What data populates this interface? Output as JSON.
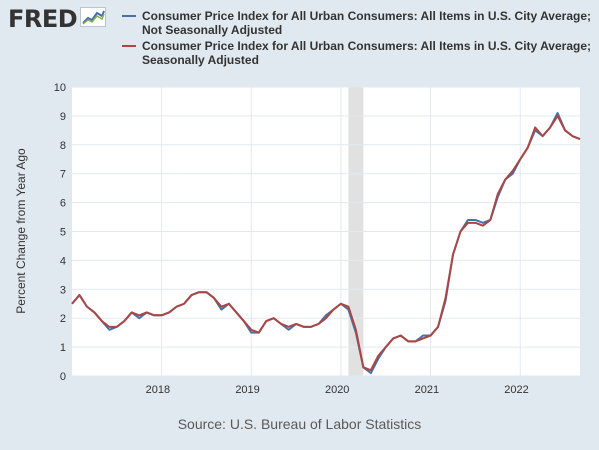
{
  "logo": {
    "text": "FRED",
    "icon": "trend-line-icon"
  },
  "source": "Source: U.S. Bureau of Labor Statistics",
  "colors": {
    "nsa": "#4572a7",
    "sa": "#aa4643",
    "recession": "#e1e1e1",
    "grid": "#e1e9f0"
  },
  "chart_data": {
    "type": "line",
    "ylabel": "Percent Change from Year Ago",
    "xlabel": "",
    "ylim": [
      0,
      10
    ],
    "y_ticks": [
      0,
      1,
      2,
      3,
      4,
      5,
      6,
      7,
      8,
      9,
      10
    ],
    "xlim": [
      "2017-01",
      "2022-09"
    ],
    "x_ticks": [
      "2018",
      "2019",
      "2020",
      "2021",
      "2022"
    ],
    "grid": true,
    "legend_position": "top",
    "recession": {
      "start": "2020-02",
      "end": "2020-04"
    },
    "x": [
      "2017-01",
      "2017-02",
      "2017-03",
      "2017-04",
      "2017-05",
      "2017-06",
      "2017-07",
      "2017-08",
      "2017-09",
      "2017-10",
      "2017-11",
      "2017-12",
      "2018-01",
      "2018-02",
      "2018-03",
      "2018-04",
      "2018-05",
      "2018-06",
      "2018-07",
      "2018-08",
      "2018-09",
      "2018-10",
      "2018-11",
      "2018-12",
      "2019-01",
      "2019-02",
      "2019-03",
      "2019-04",
      "2019-05",
      "2019-06",
      "2019-07",
      "2019-08",
      "2019-09",
      "2019-10",
      "2019-11",
      "2019-12",
      "2020-01",
      "2020-02",
      "2020-03",
      "2020-04",
      "2020-05",
      "2020-06",
      "2020-07",
      "2020-08",
      "2020-09",
      "2020-10",
      "2020-11",
      "2020-12",
      "2021-01",
      "2021-02",
      "2021-03",
      "2021-04",
      "2021-05",
      "2021-06",
      "2021-07",
      "2021-08",
      "2021-09",
      "2021-10",
      "2021-11",
      "2021-12",
      "2022-01",
      "2022-02",
      "2022-03",
      "2022-04",
      "2022-05",
      "2022-06",
      "2022-07",
      "2022-08",
      "2022-09"
    ],
    "series": [
      {
        "name": "Consumer Price Index for All Urban Consumers: All Items in U.S. City Average; Not Seasonally Adjusted",
        "color": "#4572a7",
        "values": [
          2.5,
          2.8,
          2.4,
          2.2,
          1.9,
          1.6,
          1.7,
          1.9,
          2.2,
          2.0,
          2.2,
          2.1,
          2.1,
          2.2,
          2.4,
          2.5,
          2.8,
          2.9,
          2.9,
          2.7,
          2.3,
          2.5,
          2.2,
          1.9,
          1.5,
          1.5,
          1.9,
          2.0,
          1.8,
          1.6,
          1.8,
          1.7,
          1.7,
          1.8,
          2.1,
          2.3,
          2.5,
          2.3,
          1.5,
          0.3,
          0.1,
          0.6,
          1.0,
          1.3,
          1.4,
          1.2,
          1.2,
          1.4,
          1.4,
          1.7,
          2.6,
          4.2,
          5.0,
          5.4,
          5.4,
          5.3,
          5.4,
          6.2,
          6.8,
          7.0,
          7.5,
          7.9,
          8.5,
          8.3,
          8.6,
          9.1,
          8.5,
          8.3,
          8.2
        ]
      },
      {
        "name": "Consumer Price Index for All Urban Consumers: All Items in U.S. City Average; Seasonally Adjusted",
        "color": "#aa4643",
        "values": [
          2.5,
          2.8,
          2.4,
          2.2,
          1.9,
          1.7,
          1.7,
          1.9,
          2.2,
          2.1,
          2.2,
          2.1,
          2.1,
          2.2,
          2.4,
          2.5,
          2.8,
          2.9,
          2.9,
          2.7,
          2.4,
          2.5,
          2.2,
          1.9,
          1.6,
          1.5,
          1.9,
          2.0,
          1.8,
          1.7,
          1.8,
          1.7,
          1.7,
          1.8,
          2.0,
          2.3,
          2.5,
          2.4,
          1.6,
          0.3,
          0.2,
          0.7,
          1.0,
          1.3,
          1.4,
          1.2,
          1.2,
          1.3,
          1.4,
          1.7,
          2.7,
          4.2,
          5.0,
          5.3,
          5.3,
          5.2,
          5.4,
          6.3,
          6.8,
          7.1,
          7.5,
          7.9,
          8.6,
          8.3,
          8.6,
          9.0,
          8.5,
          8.3,
          8.2
        ]
      }
    ]
  }
}
